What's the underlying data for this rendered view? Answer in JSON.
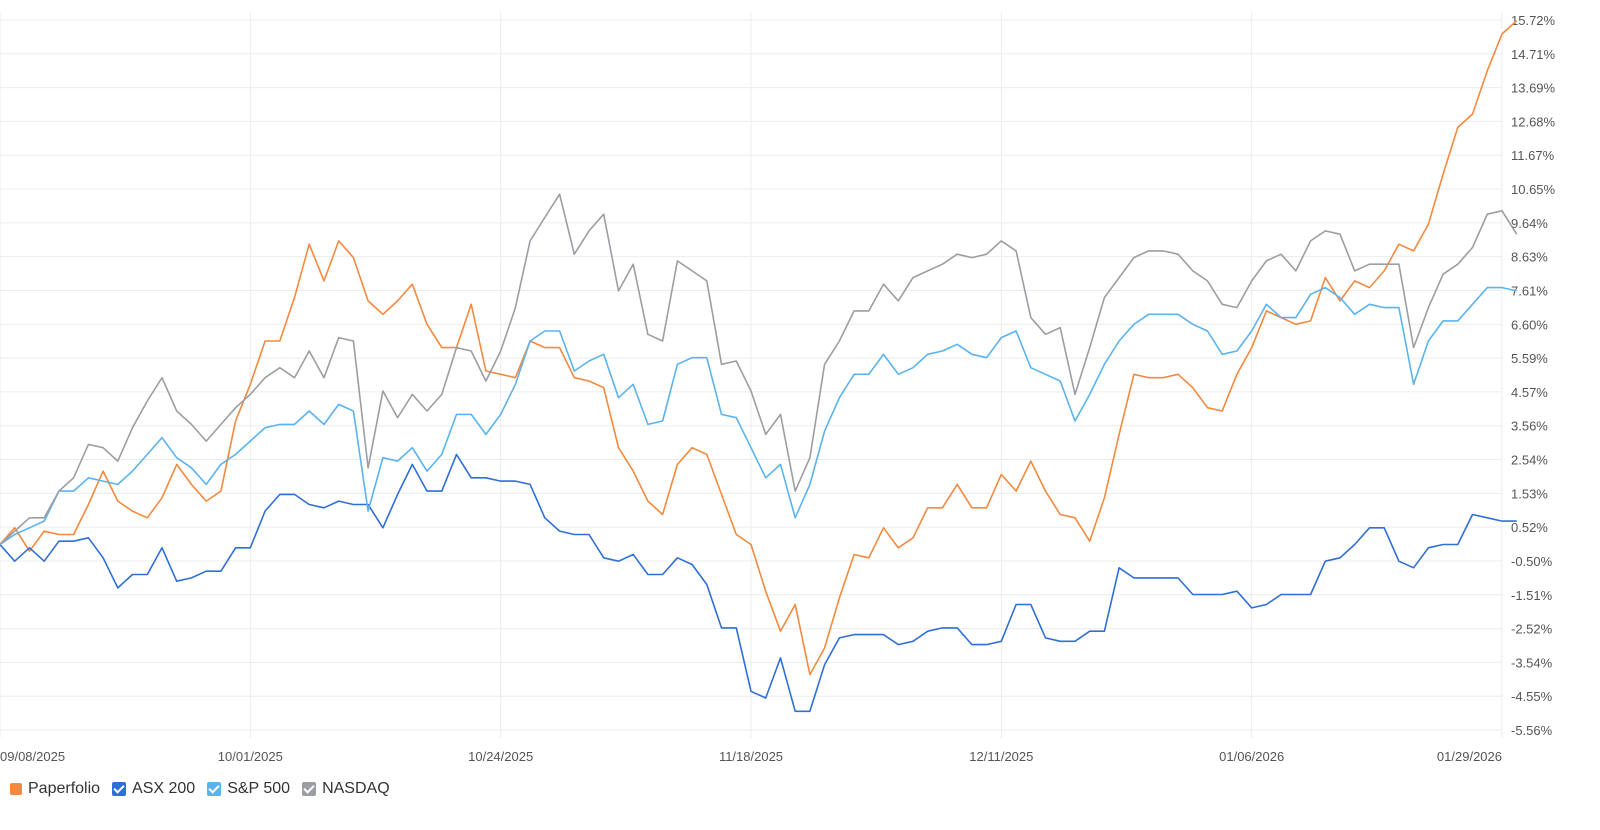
{
  "chart_data": {
    "type": "line",
    "title": "",
    "xlabel": "",
    "ylabel": "",
    "ylim": [
      -5.56,
      15.72
    ],
    "y_ticks": [
      "15.72%",
      "14.71%",
      "13.69%",
      "12.68%",
      "11.67%",
      "10.65%",
      "9.64%",
      "8.63%",
      "7.61%",
      "6.60%",
      "5.59%",
      "4.57%",
      "3.56%",
      "2.54%",
      "1.53%",
      "0.52%",
      "-0.50%",
      "-1.51%",
      "-2.52%",
      "-3.54%",
      "-4.55%",
      "-5.56%"
    ],
    "x_ticks": [
      {
        "label": "09/08/2025",
        "index": 0
      },
      {
        "label": "10/01/2025",
        "index": 17
      },
      {
        "label": "10/24/2025",
        "index": 34
      },
      {
        "label": "11/18/2025",
        "index": 51
      },
      {
        "label": "12/11/2025",
        "index": 68
      },
      {
        "label": "01/06/2026",
        "index": 85
      },
      {
        "label": "01/29/2026",
        "index": 102
      }
    ],
    "n_points": 103,
    "grid": "horizontal",
    "legend_position": "bottom-left",
    "series": [
      {
        "name": "Paperfolio",
        "color": "#f5893d",
        "legend_style": "square",
        "values": [
          0.0,
          0.5,
          -0.2,
          0.4,
          0.3,
          0.3,
          1.2,
          2.2,
          1.3,
          1.0,
          0.8,
          1.4,
          2.4,
          1.8,
          1.3,
          1.6,
          3.7,
          4.8,
          6.1,
          6.1,
          7.4,
          9.0,
          7.9,
          9.1,
          8.6,
          7.3,
          6.9,
          7.3,
          7.8,
          6.6,
          5.9,
          5.9,
          7.2,
          5.2,
          5.1,
          5.0,
          6.1,
          5.9,
          5.9,
          5.0,
          4.9,
          4.7,
          2.9,
          2.2,
          1.3,
          0.9,
          2.4,
          2.9,
          2.7,
          1.5,
          0.3,
          0.0,
          -1.4,
          -2.6,
          -1.8,
          -3.9,
          -3.1,
          -1.6,
          -0.3,
          -0.4,
          0.5,
          -0.1,
          0.2,
          1.1,
          1.1,
          1.8,
          1.1,
          1.1,
          2.1,
          1.6,
          2.5,
          1.6,
          0.9,
          0.8,
          0.1,
          1.4,
          3.3,
          5.1,
          5.0,
          5.0,
          5.1,
          4.7,
          4.1,
          4.0,
          5.1,
          5.9,
          7.0,
          6.8,
          6.6,
          6.7,
          8.0,
          7.3,
          7.9,
          7.7,
          8.2,
          9.0,
          8.8,
          9.6,
          11.1,
          12.5,
          12.9,
          14.2,
          15.3,
          15.7
        ],
        "note_skip": true
      },
      {
        "name": "ASX 200",
        "color": "#2f6fd6",
        "legend_style": "check",
        "values": [
          0.0,
          -0.5,
          -0.1,
          -0.5,
          0.1,
          0.1,
          0.2,
          -0.4,
          -1.3,
          -0.9,
          -0.9,
          -0.1,
          -1.1,
          -1.0,
          -0.8,
          -0.8,
          -0.1,
          -0.1,
          1.0,
          1.5,
          1.5,
          1.2,
          1.1,
          1.3,
          1.2,
          1.2,
          0.5,
          1.5,
          2.4,
          1.6,
          1.6,
          2.7,
          2.0,
          2.0,
          1.9,
          1.9,
          1.8,
          0.8,
          0.4,
          0.3,
          0.3,
          -0.4,
          -0.5,
          -0.3,
          -0.9,
          -0.9,
          -0.4,
          -0.6,
          -1.2,
          -2.5,
          -2.5,
          -4.4,
          -4.6,
          -3.4,
          -5.0,
          -5.0,
          -3.6,
          -2.8,
          -2.7,
          -2.7,
          -2.7,
          -3.0,
          -2.9,
          -2.6,
          -2.5,
          -2.5,
          -3.0,
          -3.0,
          -2.9,
          -1.8,
          -1.8,
          -2.8,
          -2.9,
          -2.9,
          -2.6,
          -2.6,
          -0.7,
          -1.0,
          -1.0,
          -1.0,
          -1.0,
          -1.5,
          -1.5,
          -1.5,
          -1.4,
          -1.9,
          -1.8,
          -1.5,
          -1.5,
          -1.5,
          -0.5,
          -0.4,
          0.0,
          0.5,
          0.5,
          -0.5,
          -0.7,
          -0.1,
          0.0,
          0.0,
          0.9,
          0.8,
          0.7,
          0.7
        ]
      },
      {
        "name": "S&P 500",
        "color": "#5ab3ef",
        "legend_style": "check",
        "values": [
          0.0,
          0.3,
          0.5,
          0.7,
          1.6,
          1.6,
          2.0,
          1.9,
          1.8,
          2.2,
          2.7,
          3.2,
          2.6,
          2.3,
          1.8,
          2.4,
          2.7,
          3.1,
          3.5,
          3.6,
          3.6,
          4.0,
          3.6,
          4.2,
          4.0,
          1.0,
          2.6,
          2.5,
          2.9,
          2.2,
          2.7,
          3.9,
          3.9,
          3.3,
          3.9,
          4.8,
          6.1,
          6.4,
          6.4,
          5.2,
          5.5,
          5.7,
          4.4,
          4.8,
          3.6,
          3.7,
          5.4,
          5.6,
          5.6,
          3.9,
          3.8,
          2.9,
          2.0,
          2.4,
          0.8,
          1.8,
          3.4,
          4.4,
          5.1,
          5.1,
          5.7,
          5.1,
          5.3,
          5.7,
          5.8,
          6.0,
          5.7,
          5.6,
          6.2,
          6.4,
          5.3,
          5.1,
          4.9,
          3.7,
          4.5,
          5.4,
          6.1,
          6.6,
          6.9,
          6.9,
          6.9,
          6.6,
          6.4,
          5.7,
          5.8,
          6.4,
          7.2,
          6.8,
          6.8,
          7.5,
          7.7,
          7.4,
          6.9,
          7.2,
          7.1,
          7.1,
          4.8,
          6.1,
          6.7,
          6.7,
          7.2,
          7.7,
          7.7,
          7.6
        ]
      },
      {
        "name": "NASDAQ",
        "color": "#9b9ea3",
        "legend_style": "check",
        "values": [
          0.0,
          0.4,
          0.8,
          0.8,
          1.6,
          2.0,
          3.0,
          2.9,
          2.5,
          3.5,
          4.3,
          5.0,
          4.0,
          3.6,
          3.1,
          3.6,
          4.1,
          4.5,
          5.0,
          5.3,
          5.0,
          5.8,
          5.0,
          6.2,
          6.1,
          2.3,
          4.6,
          3.8,
          4.5,
          4.0,
          4.5,
          5.9,
          5.8,
          4.9,
          5.8,
          7.1,
          9.1,
          9.8,
          10.5,
          8.7,
          9.4,
          9.9,
          7.6,
          8.4,
          6.3,
          6.1,
          8.5,
          8.2,
          7.9,
          5.4,
          5.5,
          4.6,
          3.3,
          3.9,
          1.6,
          2.6,
          5.4,
          6.1,
          7.0,
          7.0,
          7.8,
          7.3,
          8.0,
          8.2,
          8.4,
          8.7,
          8.6,
          8.7,
          9.1,
          8.8,
          6.8,
          6.3,
          6.5,
          4.5,
          5.9,
          7.4,
          8.0,
          8.6,
          8.8,
          8.8,
          8.7,
          8.2,
          7.9,
          7.2,
          7.1,
          7.9,
          8.5,
          8.7,
          8.2,
          9.1,
          9.4,
          9.3,
          8.2,
          8.4,
          8.4,
          8.4,
          5.9,
          7.1,
          8.1,
          8.4,
          8.9,
          9.9,
          10.0,
          9.3
        ]
      }
    ]
  }
}
